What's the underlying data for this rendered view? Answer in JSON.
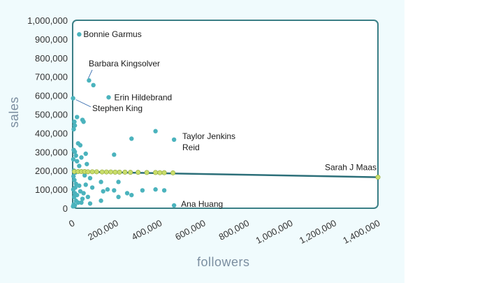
{
  "chart_data": {
    "type": "scatter",
    "title": "",
    "xlabel": "followers",
    "ylabel": "sales",
    "xlim": [
      0,
      1400000
    ],
    "ylim": [
      0,
      1000000
    ],
    "x_ticks": [
      "0",
      "200,000",
      "400,000",
      "600,000",
      "800,000",
      "1,000,000",
      "1,200,000",
      "1,400,000"
    ],
    "y_ticks": [
      "0",
      "100,000",
      "200,000",
      "300,000",
      "400,000",
      "500,000",
      "600,000",
      "700,000",
      "800,000",
      "900,000",
      "1,000,000"
    ],
    "grid": false,
    "colors": {
      "points": "#4bb3bd",
      "trend_points": "#c9dd6a",
      "trend_line": "#2c6f79",
      "axis_text": "#333333",
      "label_text": "#7b8ea0"
    },
    "trendline": {
      "x": [
        0,
        1400000
      ],
      "y": [
        195000,
        165000
      ]
    },
    "annotations": [
      {
        "text": "Bonnie Garmus",
        "x": 30000,
        "y": 925000
      },
      {
        "text": "Barbara Kingsolver",
        "x": 75000,
        "y": 680000
      },
      {
        "text": "Erin Hildebrand",
        "x": 165000,
        "y": 590000
      },
      {
        "text": "Stephen King",
        "x": 2000,
        "y": 585000
      },
      {
        "text": "Taylor Jenkins Reid",
        "x": 465000,
        "y": 365000
      },
      {
        "text": "Sarah J Maas",
        "x": 1400000,
        "y": 165000
      },
      {
        "text": "Ana Huang",
        "x": 465000,
        "y": 15000
      }
    ],
    "series": [
      {
        "values": [
          [
            30000,
            925000
          ],
          [
            75000,
            680000
          ],
          [
            95000,
            655000
          ],
          [
            165000,
            590000
          ],
          [
            2000,
            585000
          ],
          [
            20000,
            485000
          ],
          [
            45000,
            470000
          ],
          [
            50000,
            460000
          ],
          [
            8000,
            460000
          ],
          [
            10000,
            440000
          ],
          [
            5000,
            420000
          ],
          [
            380000,
            410000
          ],
          [
            270000,
            370000
          ],
          [
            465000,
            365000
          ],
          [
            25000,
            345000
          ],
          [
            35000,
            335000
          ],
          [
            5000,
            310000
          ],
          [
            10000,
            300000
          ],
          [
            60000,
            290000
          ],
          [
            190000,
            285000
          ],
          [
            15000,
            280000
          ],
          [
            40000,
            270000
          ],
          [
            3000,
            260000
          ],
          [
            20000,
            250000
          ],
          [
            30000,
            225000
          ],
          [
            65000,
            235000
          ],
          [
            6000,
            200000
          ],
          [
            12000,
            190000
          ],
          [
            55000,
            175000
          ],
          [
            80000,
            160000
          ],
          [
            130000,
            140000
          ],
          [
            210000,
            140000
          ],
          [
            4000,
            170000
          ],
          [
            8000,
            150000
          ],
          [
            15000,
            130000
          ],
          [
            30000,
            120000
          ],
          [
            60000,
            125000
          ],
          [
            90000,
            110000
          ],
          [
            160000,
            100000
          ],
          [
            190000,
            95000
          ],
          [
            140000,
            90000
          ],
          [
            320000,
            95000
          ],
          [
            380000,
            100000
          ],
          [
            420000,
            95000
          ],
          [
            250000,
            80000
          ],
          [
            270000,
            70000
          ],
          [
            210000,
            60000
          ],
          [
            130000,
            40000
          ],
          [
            80000,
            25000
          ],
          [
            40000,
            30000
          ],
          [
            20000,
            70000
          ],
          [
            10000,
            80000
          ],
          [
            3000,
            100000
          ],
          [
            7000,
            60000
          ],
          [
            15000,
            40000
          ],
          [
            25000,
            30000
          ],
          [
            5000,
            20000
          ],
          [
            10000,
            15000
          ],
          [
            2000,
            10000
          ],
          [
            465000,
            15000
          ],
          [
            50000,
            80000
          ],
          [
            70000,
            60000
          ],
          [
            35000,
            90000
          ],
          [
            45000,
            50000
          ],
          [
            12000,
            110000
          ]
        ]
      },
      {
        "values": [
          [
            8000,
            195000
          ],
          [
            25000,
            195000
          ],
          [
            40000,
            195000
          ],
          [
            55000,
            195000
          ],
          [
            70000,
            194000
          ],
          [
            90000,
            194000
          ],
          [
            110000,
            194000
          ],
          [
            135000,
            193000
          ],
          [
            155000,
            193000
          ],
          [
            175000,
            193000
          ],
          [
            195000,
            192000
          ],
          [
            215000,
            192000
          ],
          [
            240000,
            192000
          ],
          [
            265000,
            191000
          ],
          [
            300000,
            191000
          ],
          [
            340000,
            190000
          ],
          [
            380000,
            190000
          ],
          [
            400000,
            189000
          ],
          [
            420000,
            189000
          ],
          [
            460000,
            188000
          ],
          [
            1400000,
            165000
          ]
        ]
      }
    ]
  }
}
